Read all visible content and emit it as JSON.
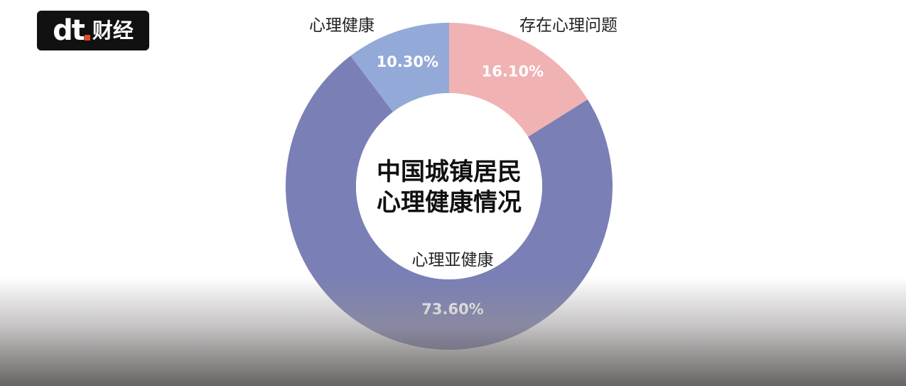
{
  "brand": {
    "mark": "dt",
    "name": "财经",
    "accent": "#e4482f"
  },
  "chart_data": {
    "type": "pie",
    "variant": "donut",
    "title": [
      "中国城镇居民",
      "心理健康情况"
    ],
    "categories": [
      "存在心理问题",
      "心理亚健康",
      "心理健康"
    ],
    "values": [
      16.1,
      73.6,
      10.3
    ],
    "value_labels": [
      "16.10%",
      "73.60%",
      "10.30%"
    ],
    "colors": [
      "#f0b2b3",
      "#7a7fb5",
      "#93aad8"
    ]
  }
}
